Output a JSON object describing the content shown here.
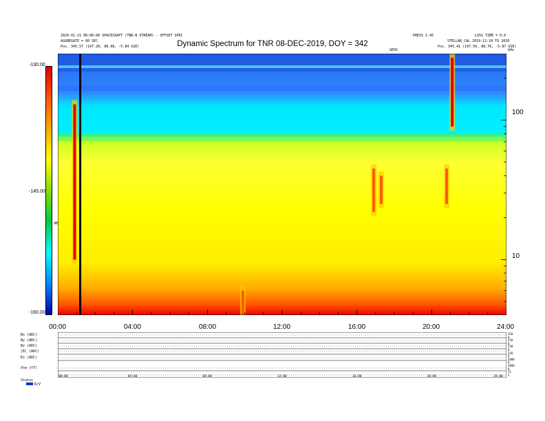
{
  "header": {
    "title": "Dynamic Spectrum for TNR 08-DEC-2019, DOY = 342",
    "left_info_1": "2020-01-21 00:00:00 SPACECRAFT (TNR-B STREAM) - OFFSET SPEC",
    "left_info_2": "AGGREGATE = 60 SEC",
    "left_info_3": "Pos.   345.57 (197.28, 88.08, -5.84 GSE)",
    "right_info_1": "PRESS 2.45",
    "right_info_2": "LOSS TIME = 0.0",
    "right_info_3": "STELLAR_CAL 2019-12-10 TO 2020",
    "right_info_4": "Pos.   345.41 (197.56, 88.76, -5.87 GSE)",
    "right_mid": "GEOS",
    "corner_unit": "kHz"
  },
  "colorbar": {
    "label": "dB",
    "ticks": [
      "-130.00",
      "-145.00",
      "-160.00"
    ],
    "stops": [
      "#dd0000",
      "#ff5500",
      "#ffaa00",
      "#ffff00",
      "#88dd00",
      "#00cc44",
      "#00ffff",
      "#0088ff",
      "#0000aa"
    ]
  },
  "chart_data": {
    "type": "heatmap",
    "title": "Dynamic Spectrum for TNR 08-DEC-2019, DOY = 342",
    "x_ticks": [
      "00:00",
      "04:00",
      "08:00",
      "12:00",
      "16:00",
      "20:00",
      "24:00"
    ],
    "x_range_hours": [
      0,
      24
    ],
    "y_scale": "log",
    "y_ticks": [
      {
        "value": 100,
        "label": "100"
      },
      {
        "value": 10,
        "label": "10"
      }
    ],
    "y_range": [
      4,
      300
    ],
    "colorbar_range": [
      -160,
      -130
    ],
    "marker_line_hour": 1.2,
    "bursts": [
      {
        "hour": 0.9,
        "freq_low": 10,
        "freq_high": 130,
        "level": "high"
      },
      {
        "hour": 21.1,
        "freq_low": 90,
        "freq_high": 280,
        "level": "high"
      },
      {
        "hour": 20.8,
        "freq_low": 25,
        "freq_high": 45,
        "level": "medium"
      },
      {
        "hour": 16.9,
        "freq_low": 22,
        "freq_high": 45,
        "level": "medium"
      },
      {
        "hour": 17.3,
        "freq_low": 25,
        "freq_high": 40,
        "level": "medium"
      },
      {
        "hour": 9.9,
        "freq_low": 4,
        "freq_high": 6,
        "level": "medium"
      }
    ]
  },
  "aux_panel": {
    "row_labels": [
      "Bx (ADC)",
      "By (ADC)",
      "Bz (ADC)",
      "|B| (ADC)",
      "Ex (ADC)",
      "Vsw (nT)",
      "Status"
    ],
    "right_labels": [
      "250",
      "0",
      "250",
      "0",
      "250",
      "0",
      "250",
      "0",
      "5000",
      "0",
      "5000",
      "0",
      "15",
      "5"
    ],
    "x_ticks": [
      "00:00",
      "04:00",
      "08:00",
      "12:00",
      "16:00",
      "20:00",
      "24:00"
    ],
    "status_text": "R/V"
  }
}
